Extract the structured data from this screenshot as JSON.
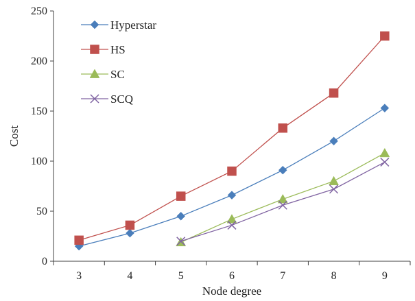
{
  "chart_data": {
    "type": "line",
    "title": "",
    "xlabel": "Node degree",
    "ylabel": "Cost",
    "x": [
      3,
      4,
      5,
      6,
      7,
      8,
      9
    ],
    "xticks": [
      "3",
      "4",
      "5",
      "6",
      "7",
      "8",
      "9"
    ],
    "ylim": [
      0,
      250
    ],
    "yticks": [
      0,
      50,
      100,
      150,
      200,
      250
    ],
    "grid": false,
    "legend_position": "top-left",
    "series": [
      {
        "name": "Hyperstar",
        "marker": "diamond",
        "color": "#4a7ebb",
        "x": [
          3,
          4,
          5,
          6,
          7,
          8,
          9
        ],
        "values": [
          15,
          28,
          45,
          66,
          91,
          120,
          153
        ]
      },
      {
        "name": "HS",
        "marker": "square",
        "color": "#c0504d",
        "x": [
          3,
          4,
          5,
          6,
          7,
          8,
          9
        ],
        "values": [
          21,
          36,
          65,
          90,
          133,
          168,
          225
        ]
      },
      {
        "name": "SC",
        "marker": "triangle",
        "color": "#9bbb59",
        "x": [
          5,
          6,
          7,
          8,
          9
        ],
        "values": [
          19,
          42,
          62,
          80,
          108
        ]
      },
      {
        "name": "SCQ",
        "marker": "x",
        "color": "#8064a2",
        "x": [
          5,
          6,
          7,
          8,
          9
        ],
        "values": [
          20,
          36,
          56,
          72,
          99
        ]
      }
    ]
  }
}
